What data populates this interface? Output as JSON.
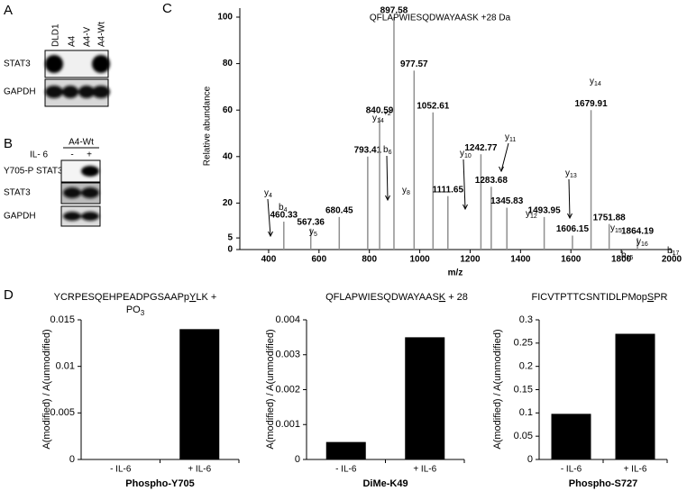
{
  "panels": {
    "a": "A",
    "b": "B",
    "c": "C",
    "d": "D"
  },
  "blots": {
    "a": {
      "lanes": [
        "DLD1",
        "A4",
        "A4-V",
        "A4-Wt"
      ],
      "rows": [
        "STAT3",
        "GAPDH"
      ]
    },
    "b": {
      "header": "A4-Wt",
      "treatment": "IL- 6",
      "conditions": [
        "-",
        "+"
      ],
      "rows": [
        "Y705-P STAT3",
        "STAT3",
        "GAPDH"
      ]
    }
  },
  "chart_data": [
    {
      "type": "spectrum",
      "title": "QFLAPWIESQDWAYAASK +28 Da",
      "xlabel": "m/z",
      "ylabel": "Relative abundance",
      "color": "#909090",
      "x": [
        460.33,
        567.36,
        680.45,
        793.41,
        840.59,
        897.58,
        977.57,
        1052.61,
        1111.65,
        1242.77,
        1283.68,
        1345.83,
        1493.95,
        1606.15,
        1679.91,
        1751.88,
        1864.19
      ],
      "values": [
        12,
        9,
        14,
        40,
        57,
        100,
        77,
        59,
        23,
        41,
        27,
        18,
        14,
        6,
        60,
        11,
        5
      ],
      "ions": [
        {
          "ion": "y",
          "sub": "4"
        },
        {
          "ion": "b",
          "sub": "4"
        },
        {
          "ion": "y",
          "sub": "5"
        },
        {
          "ion": "y",
          "sub": "14",
          "sup": "+2"
        },
        {
          "ion": "b",
          "sub": "6"
        },
        {
          "ion": "y",
          "sub": "8"
        },
        {
          "ion": "y",
          "sub": "10"
        },
        {
          "ion": "y",
          "sub": "11"
        },
        {
          "ion": "y",
          "sub": "12"
        },
        {
          "ion": "y",
          "sub": "13"
        },
        {
          "ion": "y",
          "sub": "14"
        },
        {
          "ion": "y",
          "sub": "15"
        },
        {
          "ion": "b",
          "sub": "15"
        },
        {
          "ion": "y",
          "sub": "16"
        },
        {
          "ion": "b",
          "sub": "17"
        }
      ],
      "xlim": [
        300,
        2000
      ],
      "xticks": [
        400,
        600,
        800,
        1000,
        1200,
        1400,
        1600,
        1800,
        2000
      ],
      "ylim": [
        0,
        100
      ],
      "yticks": [
        0,
        5,
        20,
        40,
        60,
        80,
        100
      ]
    },
    {
      "type": "bar",
      "title": [
        [
          {
            "text": "YCRPESQEHPEADPGSAAPp"
          },
          {
            "text": "Y",
            "underline": true
          },
          {
            "text": "LK  +"
          }
        ],
        [
          {
            "text": "PO"
          },
          {
            "text": "3",
            "sub": true
          }
        ]
      ],
      "categories": [
        "- IL-6",
        "+ IL-6"
      ],
      "values": [
        0,
        0.014
      ],
      "color": "#000000",
      "xlabel": "Phospho-Y705",
      "ylabel": "A(modified) / A(unmodified)",
      "ylim": [
        0,
        0.015
      ],
      "yticks": [
        0,
        0.005,
        0.01,
        0.015
      ]
    },
    {
      "type": "bar",
      "title": [
        [
          {
            "text": "QFLAPWIESQDWAYAAS"
          },
          {
            "text": "K",
            "underline": true
          },
          {
            "text": " + 28"
          }
        ]
      ],
      "categories": [
        "- IL-6",
        "+ IL-6"
      ],
      "values": [
        0.0005,
        0.0035
      ],
      "color": "#000000",
      "xlabel": "DiMe-K49",
      "ylabel": "A(modified) / A(unmodified)",
      "ylim": [
        0,
        0.004
      ],
      "yticks": [
        0,
        0.001,
        0.002,
        0.003,
        0.004
      ]
    },
    {
      "type": "bar",
      "title": [
        [
          {
            "text": "FICVTPTTCSNTIDLPMop"
          },
          {
            "text": "S",
            "underline": true
          },
          {
            "text": "PR"
          }
        ]
      ],
      "categories": [
        "- IL-6",
        "+ IL-6"
      ],
      "values": [
        0.098,
        0.27
      ],
      "color": "#000000",
      "xlabel": "Phospho-S727",
      "ylabel": "A(modified) / A(unmodified)",
      "ylim": [
        0,
        0.3
      ],
      "yticks": [
        0,
        0.05,
        0.1,
        0.15,
        0.2,
        0.25,
        0.3
      ]
    }
  ]
}
